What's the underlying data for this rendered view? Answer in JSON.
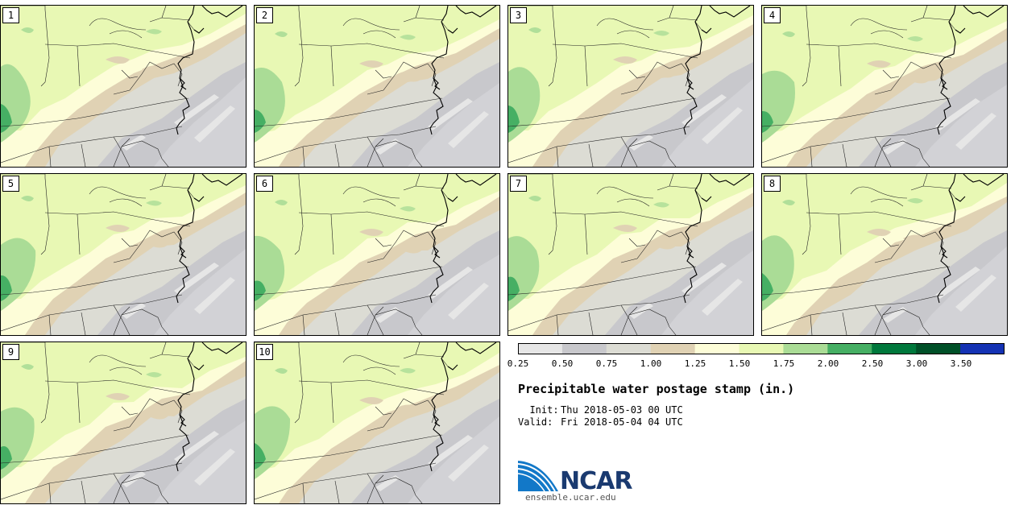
{
  "product": {
    "title": "Precipitable water postage stamp (in.)",
    "init_label": "  Init:",
    "init_value": "Thu 2018-05-03 00 UTC",
    "valid_label": "Valid:",
    "valid_value": "Fri 2018-05-04 04 UTC"
  },
  "panels": [
    {
      "label": "1"
    },
    {
      "label": "2"
    },
    {
      "label": "3"
    },
    {
      "label": "4"
    },
    {
      "label": "5"
    },
    {
      "label": "6"
    },
    {
      "label": "7"
    },
    {
      "label": "8"
    },
    {
      "label": "9"
    },
    {
      "label": "10"
    }
  ],
  "colorbar": {
    "ticks": [
      "0.25",
      "0.50",
      "0.75",
      "1.00",
      "1.25",
      "1.50",
      "1.75",
      "2.00",
      "2.50",
      "3.00",
      "3.50"
    ],
    "colors": [
      "#e6e6e6",
      "#c8c8cc",
      "#dcdcd4",
      "#e0d2b4",
      "#fdfdd8",
      "#e8f8b4",
      "#aadc96",
      "#46af64",
      "#00783c",
      "#005028",
      "#1432b4"
    ]
  },
  "logo": {
    "text": "NCAR",
    "url": "ensemble.ucar.edu",
    "colors": {
      "blue": "#1278c8",
      "dark": "#1a3a70"
    }
  }
}
